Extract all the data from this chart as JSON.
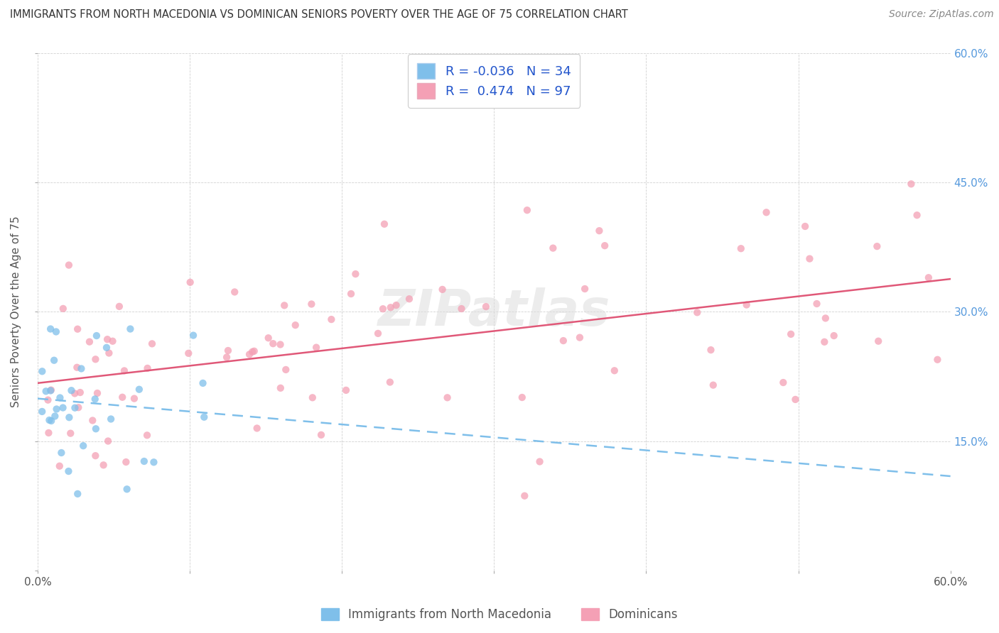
{
  "title": "IMMIGRANTS FROM NORTH MACEDONIA VS DOMINICAN SENIORS POVERTY OVER THE AGE OF 75 CORRELATION CHART",
  "source": "Source: ZipAtlas.com",
  "ylabel": "Seniors Poverty Over the Age of 75",
  "xlim": [
    0.0,
    0.6
  ],
  "ylim": [
    0.0,
    0.6
  ],
  "blue_color": "#7fbfea",
  "pink_color": "#f4a0b5",
  "pink_line_color": "#e05878",
  "blue_line_color": "#7fbfea",
  "blue_R": -0.036,
  "blue_N": 34,
  "pink_R": 0.474,
  "pink_N": 97,
  "legend_label_blue": "Immigrants from North Macedonia",
  "legend_label_pink": "Dominicans",
  "watermark": "ZIPatlas",
  "grid_color": "#cccccc",
  "right_tick_color": "#5599dd",
  "title_color": "#333333",
  "source_color": "#888888",
  "ylabel_color": "#555555"
}
